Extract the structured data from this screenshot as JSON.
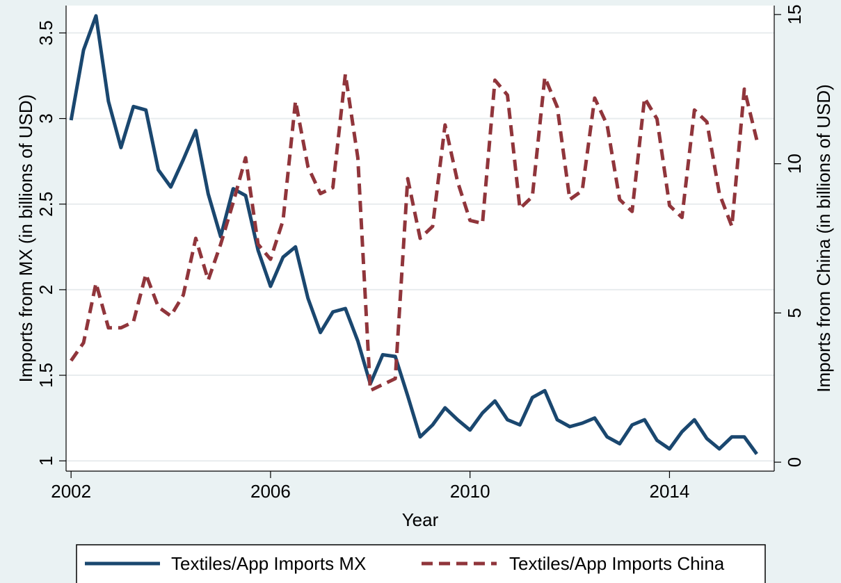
{
  "chart_data": {
    "type": "line",
    "xlabel": "Year",
    "ylabel_left": "Imports from MX (in billions of USD)",
    "ylabel_right": "Imports from China (in billions of USD)",
    "x_ticks": [
      2002,
      2006,
      2010,
      2014
    ],
    "y_left_ticks": [
      "1",
      "1.5",
      "2",
      "2.5",
      "3",
      "3.5"
    ],
    "y_right_ticks": [
      "0",
      "5",
      "10",
      "15"
    ],
    "xlim": [
      2001.9,
      2016.1
    ],
    "ylim_left": [
      0.94,
      3.66
    ],
    "ylim_right": [
      -0.3,
      15.3
    ],
    "grid": true,
    "legend_position": "bottom",
    "series": [
      {
        "name": "Textiles/App Imports MX",
        "axis": "left",
        "color": "#1a476f",
        "style": "solid",
        "x": [
          2002.0,
          2002.25,
          2002.5,
          2002.75,
          2003.0,
          2003.25,
          2003.5,
          2003.75,
          2004.0,
          2004.25,
          2004.5,
          2004.75,
          2005.0,
          2005.25,
          2005.5,
          2005.75,
          2006.0,
          2006.25,
          2006.5,
          2006.75,
          2007.0,
          2007.25,
          2007.5,
          2007.75,
          2008.0,
          2008.25,
          2008.5,
          2008.75,
          2009.0,
          2009.25,
          2009.5,
          2009.75,
          2010.0,
          2010.25,
          2010.5,
          2010.75,
          2011.0,
          2011.25,
          2011.5,
          2011.75,
          2012.0,
          2012.25,
          2012.5,
          2012.75,
          2013.0,
          2013.25,
          2013.5,
          2013.75,
          2014.0,
          2014.25,
          2014.5,
          2014.75,
          2015.0,
          2015.25,
          2015.5,
          2015.75
        ],
        "y": [
          2.99,
          3.4,
          3.6,
          3.1,
          2.83,
          3.07,
          3.05,
          2.7,
          2.6,
          2.76,
          2.93,
          2.56,
          2.31,
          2.59,
          2.55,
          2.23,
          2.02,
          2.19,
          2.25,
          1.95,
          1.75,
          1.87,
          1.89,
          1.7,
          1.45,
          1.62,
          1.61,
          1.38,
          1.14,
          1.21,
          1.31,
          1.24,
          1.18,
          1.28,
          1.35,
          1.24,
          1.21,
          1.37,
          1.41,
          1.24,
          1.2,
          1.22,
          1.25,
          1.14,
          1.1,
          1.21,
          1.24,
          1.12,
          1.07,
          1.17,
          1.24,
          1.13,
          1.07,
          1.14,
          1.14,
          1.04
        ]
      },
      {
        "name": "Textiles/App Imports China",
        "axis": "right",
        "color": "#90353b",
        "style": "dash",
        "x": [
          2002.0,
          2002.25,
          2002.5,
          2002.75,
          2003.0,
          2003.25,
          2003.5,
          2003.75,
          2004.0,
          2004.25,
          2004.5,
          2004.75,
          2005.0,
          2005.25,
          2005.5,
          2005.75,
          2006.0,
          2006.25,
          2006.5,
          2006.75,
          2007.0,
          2007.25,
          2007.5,
          2007.75,
          2008.0,
          2008.25,
          2008.5,
          2008.75,
          2009.0,
          2009.25,
          2009.5,
          2009.75,
          2010.0,
          2010.25,
          2010.5,
          2010.75,
          2011.0,
          2011.25,
          2011.5,
          2011.75,
          2012.0,
          2012.25,
          2012.5,
          2012.75,
          2013.0,
          2013.25,
          2013.5,
          2013.75,
          2014.0,
          2014.25,
          2014.5,
          2014.75,
          2015.0,
          2015.25,
          2015.5,
          2015.75
        ],
        "y": [
          3.4,
          4.0,
          6.0,
          4.5,
          4.5,
          4.7,
          6.3,
          5.2,
          4.9,
          5.6,
          7.5,
          6.1,
          7.3,
          8.7,
          10.2,
          7.3,
          6.8,
          8.1,
          12.1,
          9.9,
          9.0,
          9.2,
          13.0,
          10.2,
          2.4,
          2.6,
          2.8,
          9.5,
          7.5,
          7.9,
          11.3,
          9.4,
          8.1,
          8.0,
          12.8,
          12.3,
          8.5,
          8.9,
          12.9,
          11.9,
          8.8,
          9.1,
          12.2,
          11.3,
          8.8,
          8.4,
          12.2,
          11.5,
          8.6,
          8.2,
          11.8,
          11.4,
          9.0,
          7.9,
          12.5,
          10.8
        ]
      }
    ]
  }
}
